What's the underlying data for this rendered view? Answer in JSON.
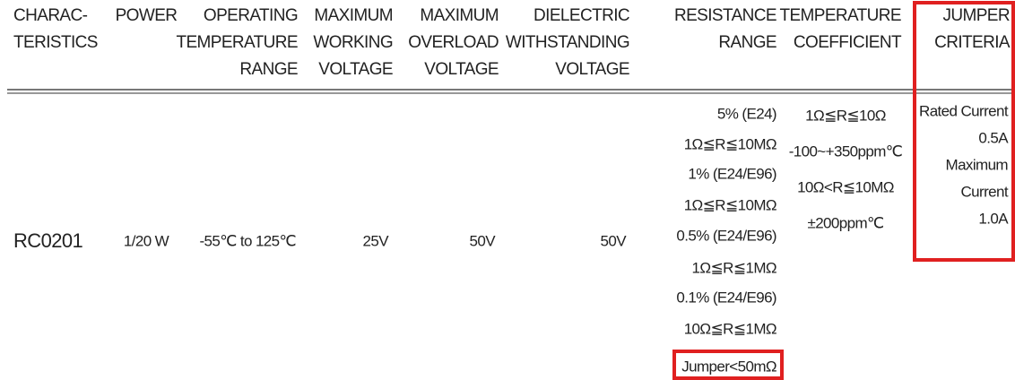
{
  "table": {
    "headers": [
      [
        "CHARAC-",
        "TERISTICS"
      ],
      [
        "POWER"
      ],
      [
        "OPERATING",
        "TEMPERATURE",
        "RANGE"
      ],
      [
        "MAXIMUM",
        "WORKING",
        "VOLTAGE"
      ],
      [
        "MAXIMUM",
        "OVERLOAD",
        "VOLTAGE"
      ],
      [
        "DIELECTRIC",
        "WITHSTANDING",
        "VOLTAGE"
      ],
      [
        "RESISTANCE",
        "RANGE"
      ],
      [
        "TEMPERATURE",
        "COEFFICIENT"
      ],
      [
        "JUMPER",
        "CRITERIA"
      ]
    ],
    "rows": [
      [
        [
          "RC0201"
        ],
        [
          "1/20 W"
        ],
        [
          "-55℃ to 125℃"
        ],
        [
          "25V"
        ],
        [
          "50V"
        ],
        [
          "50V"
        ],
        [
          "5% (E24)",
          "1Ω≦R≦10MΩ",
          "1% (E24/E96)",
          "1Ω≦R≦10MΩ",
          "0.5% (E24/E96)",
          "1Ω≦R≦1MΩ",
          "0.1% (E24/E96)",
          "10Ω≦R≦1MΩ",
          "Jumper<50mΩ"
        ],
        [
          "1Ω≦R≦10Ω",
          "-100~+350ppm℃",
          "10Ω<R≦10MΩ",
          "±200ppm℃"
        ],
        [
          "Rated Current",
          "0.5A",
          "Maximum",
          "Current",
          "1.0A"
        ]
      ]
    ]
  }
}
